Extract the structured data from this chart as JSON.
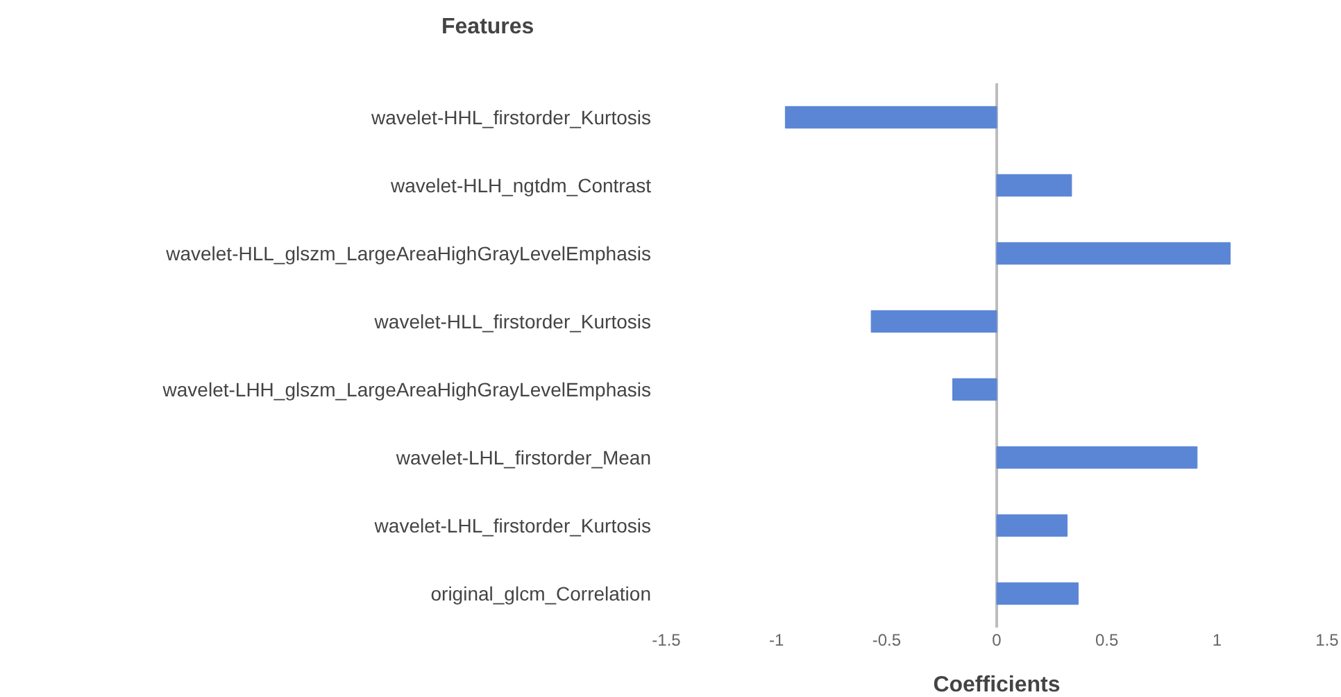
{
  "chart_data": {
    "type": "bar",
    "orientation": "horizontal",
    "ylabel": "Features",
    "xlabel": "Coefficients",
    "categories": [
      "wavelet-HHL_firstorder_Kurtosis",
      "wavelet-HLH_ngtdm_Contrast",
      "wavelet-HLL_glszm_LargeAreaHighGrayLevelEmphasis",
      "wavelet-HLL_firstorder_Kurtosis",
      "wavelet-LHH_glszm_LargeAreaHighGrayLevelEmphasis",
      "wavelet-LHL_firstorder_Mean",
      "wavelet-LHL_firstorder_Kurtosis",
      "original_glcm_Correlation"
    ],
    "values": [
      -0.96,
      0.34,
      1.06,
      -0.57,
      -0.2,
      0.91,
      0.32,
      0.37
    ],
    "color": "#5b86d6",
    "xlim": [
      -1.5,
      1.5
    ],
    "xticks": [
      -1.5,
      -1,
      -0.5,
      0,
      0.5,
      1,
      1.5
    ]
  }
}
